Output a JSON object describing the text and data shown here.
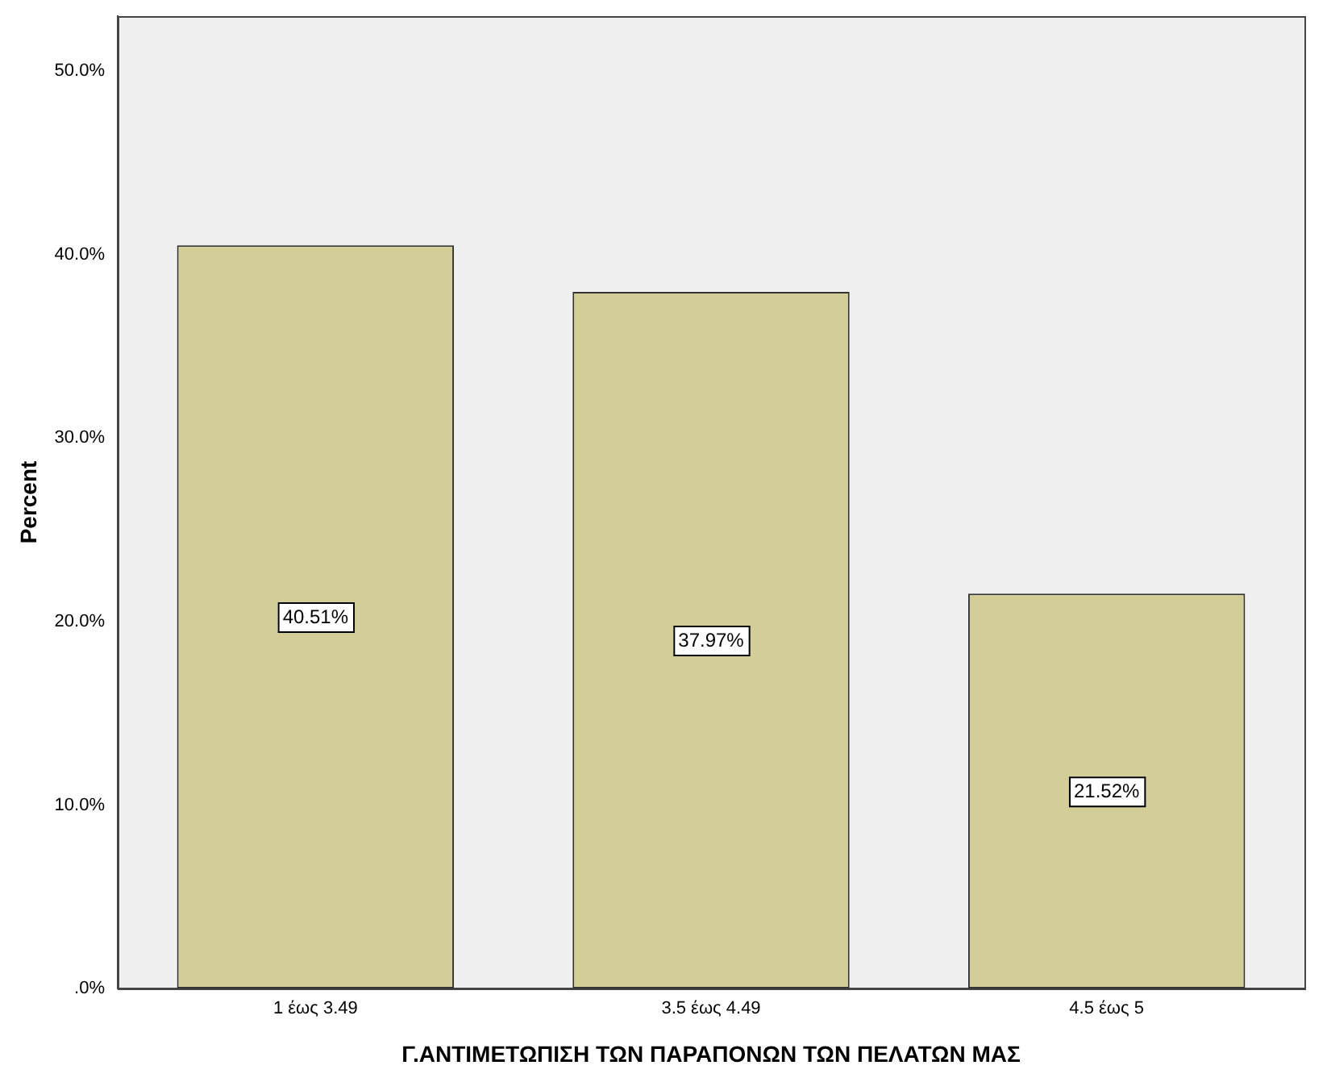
{
  "chart_data": {
    "type": "bar",
    "xlabel": "Γ.ΑΝΤΙΜΕΤΩΠΙΣΗ ΤΩΝ ΠΑΡΑΠΟΝΩΝ ΤΩΝ ΠΕΛΑΤΩΝ ΜΑΣ",
    "ylabel": "Percent",
    "categories": [
      "1 έως 3.49",
      "3.5 έως 4.49",
      "4.5 έως 5"
    ],
    "values": [
      40.51,
      37.97,
      21.52
    ],
    "value_labels": [
      "40.51%",
      "37.97%",
      "21.52%"
    ],
    "color": "#d3cd98",
    "ylim": [
      0,
      53
    ],
    "yticks": [
      {
        "value": 0,
        "label": ".0%"
      },
      {
        "value": 10,
        "label": "10.0%"
      },
      {
        "value": 20,
        "label": "20.0%"
      },
      {
        "value": 30,
        "label": "30.0%"
      },
      {
        "value": 40,
        "label": "40.0%"
      },
      {
        "value": 50,
        "label": "50.0%"
      }
    ],
    "grid": false,
    "legend": false
  }
}
